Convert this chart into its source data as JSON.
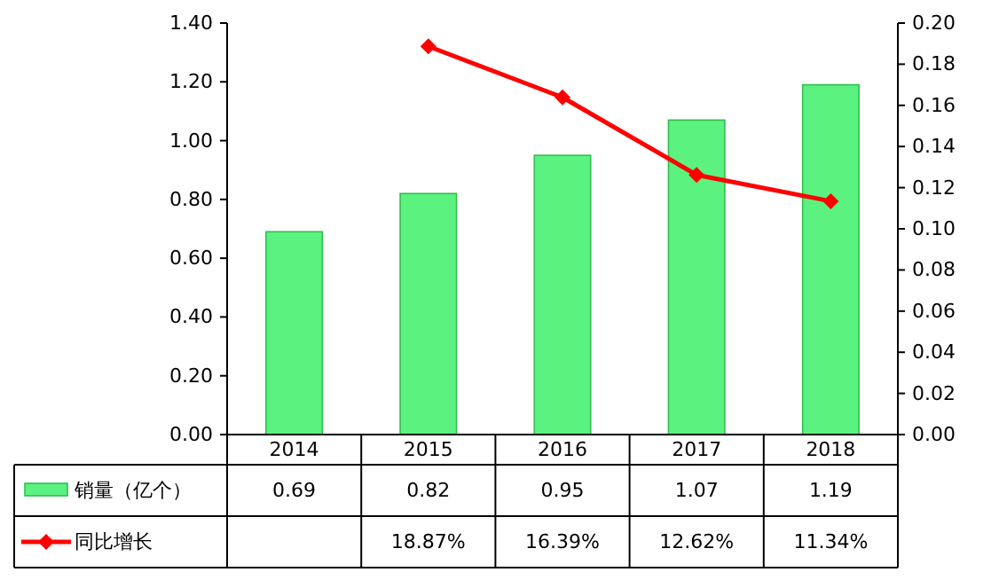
{
  "chart_data": {
    "type": "bar",
    "categories": [
      "2014",
      "2015",
      "2016",
      "2017",
      "2018"
    ],
    "series": [
      {
        "name": "销量（亿个）",
        "color": "#5cf27f",
        "values": [
          0.69,
          0.82,
          0.95,
          1.07,
          1.19
        ],
        "value_labels": [
          "0.69",
          "0.82",
          "0.95",
          "1.07",
          "1.19"
        ]
      },
      {
        "name": "同比增长",
        "type": "line",
        "axis": "y2",
        "color": "#ff0000",
        "values": [
          null,
          0.1887,
          0.1639,
          0.1262,
          0.1134
        ],
        "value_labels": [
          null,
          "18.87%",
          "16.39%",
          "12.62%",
          "11.34%"
        ]
      }
    ],
    "ylim": [
      0,
      1.4
    ],
    "yticks": [
      {
        "value": 0,
        "label": "0.00"
      },
      {
        "value": 0.2,
        "label": "0.20"
      },
      {
        "value": 0.4,
        "label": "0.40"
      },
      {
        "value": 0.6,
        "label": "0.60"
      },
      {
        "value": 0.8,
        "label": "0.80"
      },
      {
        "value": 1.0,
        "label": "1.00"
      },
      {
        "value": 1.2,
        "label": "1.20"
      },
      {
        "value": 1.4,
        "label": "1.40"
      }
    ],
    "y2lim": [
      0,
      0.2
    ],
    "y2ticks": [
      {
        "value": 0,
        "label": "0.00"
      },
      {
        "value": 0.02,
        "label": "0.02"
      },
      {
        "value": 0.04,
        "label": "0.04"
      },
      {
        "value": 0.06,
        "label": "0.06"
      },
      {
        "value": 0.08,
        "label": "0.08"
      },
      {
        "value": 0.1,
        "label": "0.10"
      },
      {
        "value": 0.12,
        "label": "0.12"
      },
      {
        "value": 0.14,
        "label": "0.14"
      },
      {
        "value": 0.16,
        "label": "0.16"
      },
      {
        "value": 0.18,
        "label": "0.18"
      },
      {
        "value": 0.2,
        "label": "0.20"
      }
    ],
    "marker": "diamond",
    "legend": "bottom left"
  }
}
